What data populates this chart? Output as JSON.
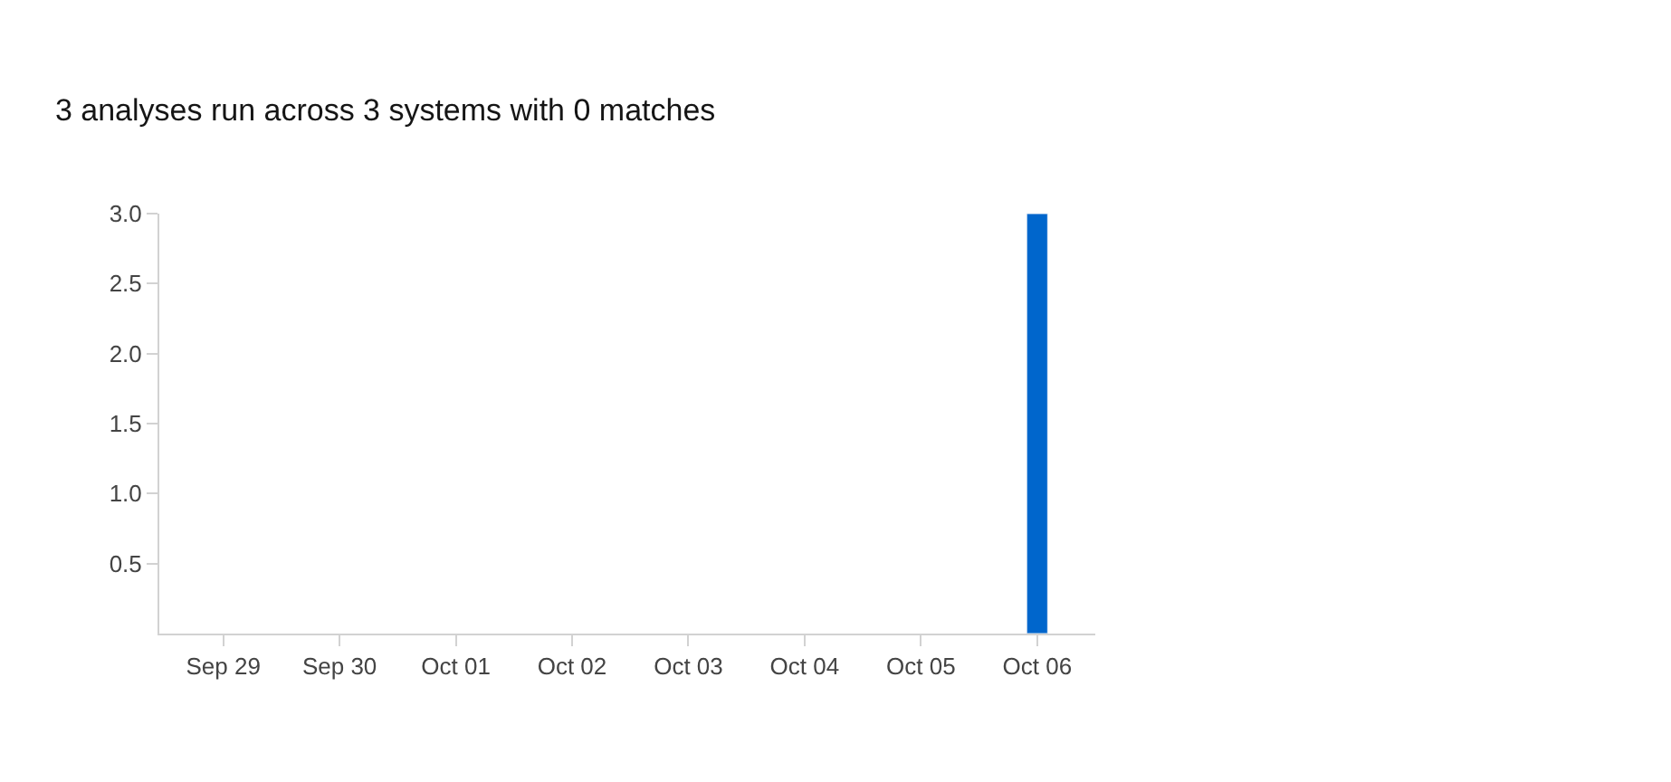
{
  "chart_data": {
    "type": "bar",
    "title": "3 analyses run across 3 systems with 0 matches",
    "categories": [
      "Sep 29",
      "Sep 30",
      "Oct 01",
      "Oct 02",
      "Oct 03",
      "Oct 04",
      "Oct 05",
      "Oct 06"
    ],
    "values": [
      null,
      null,
      null,
      null,
      null,
      null,
      null,
      3
    ],
    "color": "#0066cc",
    "ylim": [
      0,
      3
    ],
    "yticks": [
      0.5,
      {
        "value": 1,
        "label": "1.0"
      },
      1.5,
      {
        "value": 2,
        "label": "2.0"
      },
      2.5,
      {
        "value": 3,
        "label": "3.0"
      }
    ],
    "legend": false
  }
}
